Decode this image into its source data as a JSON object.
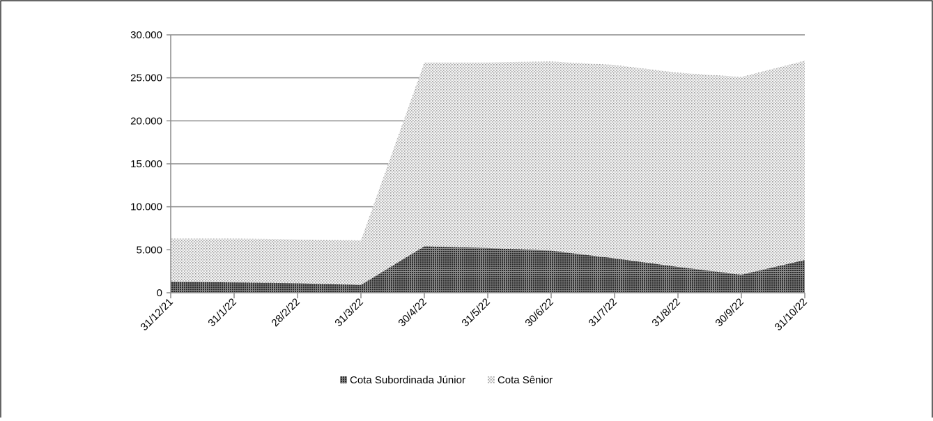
{
  "chart_data": {
    "type": "area",
    "stacked": true,
    "categories": [
      "31/12/21",
      "31/1/22",
      "28/2/22",
      "31/3/22",
      "30/4/22",
      "31/5/22",
      "30/6/22",
      "31/7/22",
      "31/8/22",
      "30/9/22",
      "31/10/22"
    ],
    "series": [
      {
        "name": "Cota Subordinada Júnior",
        "values": [
          1300,
          1200,
          1100,
          900,
          5400,
          5200,
          4900,
          4000,
          3000,
          2100,
          3800
        ],
        "color": "#3a3a3a",
        "pattern": "dense-dots"
      },
      {
        "name": "Cota Sênior",
        "values": [
          5000,
          5100,
          5100,
          5200,
          21400,
          21600,
          22000,
          22500,
          22600,
          23000,
          23200
        ],
        "color": "#d0d0d0",
        "pattern": "light-dots"
      }
    ],
    "y_ticks": [
      "0",
      "5.000",
      "10.000",
      "15.000",
      "20.000",
      "25.000",
      "30.000"
    ],
    "ylim": [
      0,
      30000
    ],
    "grid": true,
    "legend_position": "bottom"
  }
}
